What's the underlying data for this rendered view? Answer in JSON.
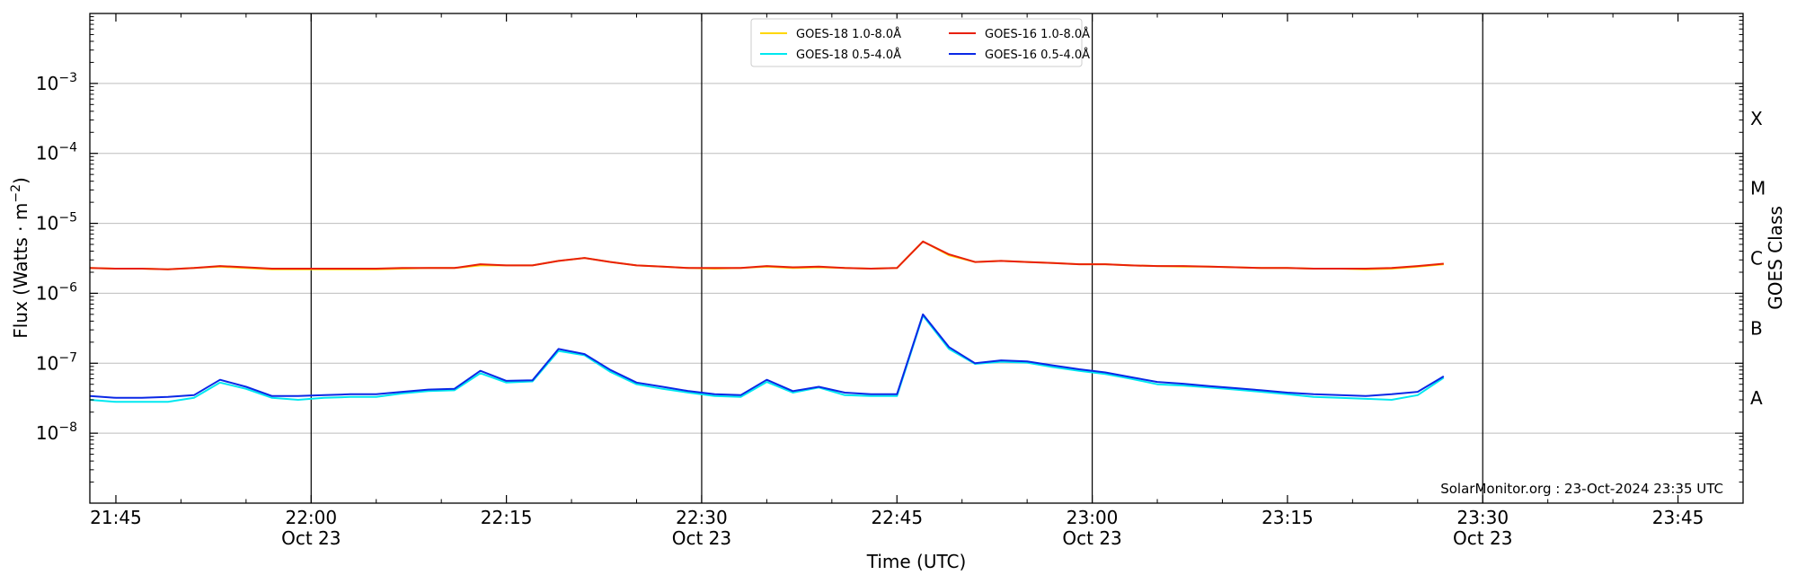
{
  "chart_data": {
    "type": "line",
    "xlabel": "Time (UTC)",
    "ylabel": "Flux (Watts · m",
    "ylabel_sup": "−2",
    "right_label": "GOES Class",
    "credit": "SolarMonitor.org : 23-Oct-2024 23:35 UTC",
    "x_range": [
      "21:43",
      "23:50"
    ],
    "ylim": [
      1e-09,
      0.01
    ],
    "y_scale": "log",
    "grid": "horizontal",
    "legend_position": "top-center",
    "y_ticks": [
      {
        "value": 1e-08,
        "base": "10",
        "exp": "−8"
      },
      {
        "value": 1e-07,
        "base": "10",
        "exp": "−7"
      },
      {
        "value": 1e-06,
        "base": "10",
        "exp": "−6"
      },
      {
        "value": 1e-05,
        "base": "10",
        "exp": "−5"
      },
      {
        "value": 0.0001,
        "base": "10",
        "exp": "−4"
      },
      {
        "value": 0.001,
        "base": "10",
        "exp": "−3"
      }
    ],
    "x_ticks": [
      {
        "time": "21:45",
        "label": "21:45",
        "sub": ""
      },
      {
        "time": "22:00",
        "label": "22:00",
        "sub": "Oct 23"
      },
      {
        "time": "22:15",
        "label": "22:15",
        "sub": ""
      },
      {
        "time": "22:30",
        "label": "22:30",
        "sub": "Oct 23"
      },
      {
        "time": "22:45",
        "label": "22:45",
        "sub": ""
      },
      {
        "time": "23:00",
        "label": "23:00",
        "sub": "Oct 23"
      },
      {
        "time": "23:15",
        "label": "23:15",
        "sub": ""
      },
      {
        "time": "23:30",
        "label": "23:30",
        "sub": "Oct 23"
      },
      {
        "time": "23:45",
        "label": "23:45",
        "sub": ""
      }
    ],
    "day_lines": [
      "22:00",
      "22:30",
      "23:00",
      "23:30"
    ],
    "classes": [
      {
        "label": "A",
        "value": 3.16e-08
      },
      {
        "label": "B",
        "value": 3.16e-07
      },
      {
        "label": "C",
        "value": 3.16e-06
      },
      {
        "label": "M",
        "value": 3.16e-05
      },
      {
        "label": "X",
        "value": 0.000316
      }
    ],
    "x": [
      "21:43",
      "21:45",
      "21:47",
      "21:49",
      "21:51",
      "21:53",
      "21:55",
      "21:57",
      "21:59",
      "22:01",
      "22:03",
      "22:05",
      "22:07",
      "22:09",
      "22:11",
      "22:13",
      "22:15",
      "22:17",
      "22:19",
      "22:21",
      "22:23",
      "22:25",
      "22:27",
      "22:29",
      "22:31",
      "22:33",
      "22:35",
      "22:37",
      "22:39",
      "22:41",
      "22:43",
      "22:45",
      "22:47",
      "22:49",
      "22:51",
      "22:53",
      "22:55",
      "22:57",
      "22:59",
      "23:01",
      "23:03",
      "23:05",
      "23:07",
      "23:09",
      "23:11",
      "23:13",
      "23:15",
      "23:17",
      "23:19",
      "23:21",
      "23:23",
      "23:25",
      "23:27"
    ],
    "series": [
      {
        "name": "GOES-18 1.0-8.0Å",
        "color": "#ffd700",
        "values": [
          2.3e-06,
          2.25e-06,
          2.25e-06,
          2.2e-06,
          2.3e-06,
          2.4e-06,
          2.3e-06,
          2.2e-06,
          2.2e-06,
          2.2e-06,
          2.2e-06,
          2.2e-06,
          2.25e-06,
          2.3e-06,
          2.3e-06,
          2.5e-06,
          2.5e-06,
          2.5e-06,
          2.9e-06,
          3.2e-06,
          2.8e-06,
          2.5e-06,
          2.4e-06,
          2.3e-06,
          2.25e-06,
          2.3e-06,
          2.4e-06,
          2.3e-06,
          2.35e-06,
          2.3e-06,
          2.25e-06,
          2.3e-06,
          5.5e-06,
          3.5e-06,
          2.8e-06,
          2.9e-06,
          2.8e-06,
          2.7e-06,
          2.6e-06,
          2.6e-06,
          2.5e-06,
          2.45e-06,
          2.4e-06,
          2.4e-06,
          2.35e-06,
          2.3e-06,
          2.3e-06,
          2.25e-06,
          2.25e-06,
          2.2e-06,
          2.25e-06,
          2.4e-06,
          2.6e-06
        ]
      },
      {
        "name": "GOES-18 0.5-4.0Å",
        "color": "#00e8f0",
        "values": [
          3e-08,
          2.8e-08,
          2.8e-08,
          2.8e-08,
          3.2e-08,
          5.3e-08,
          4.3e-08,
          3.2e-08,
          3e-08,
          3.2e-08,
          3.3e-08,
          3.3e-08,
          3.7e-08,
          4e-08,
          4.1e-08,
          7.2e-08,
          5.3e-08,
          5.5e-08,
          1.5e-07,
          1.3e-07,
          7.5e-08,
          5e-08,
          4.3e-08,
          3.8e-08,
          3.4e-08,
          3.3e-08,
          5.4e-08,
          3.8e-08,
          4.5e-08,
          3.5e-08,
          3.4e-08,
          3.4e-08,
          4.8e-07,
          1.6e-07,
          9.8e-08,
          1.05e-07,
          1.02e-07,
          8.8e-08,
          7.8e-08,
          7e-08,
          6e-08,
          5e-08,
          4.8e-08,
          4.5e-08,
          4.2e-08,
          3.9e-08,
          3.6e-08,
          3.3e-08,
          3.2e-08,
          3.1e-08,
          3e-08,
          3.5e-08,
          6.2e-08
        ]
      },
      {
        "name": "GOES-16 1.0-8.0Å",
        "color": "#e8200a",
        "values": [
          2.3e-06,
          2.25e-06,
          2.25e-06,
          2.2e-06,
          2.3e-06,
          2.45e-06,
          2.35e-06,
          2.25e-06,
          2.25e-06,
          2.25e-06,
          2.25e-06,
          2.25e-06,
          2.3e-06,
          2.3e-06,
          2.3e-06,
          2.6e-06,
          2.5e-06,
          2.5e-06,
          2.9e-06,
          3.2e-06,
          2.8e-06,
          2.5e-06,
          2.4e-06,
          2.3e-06,
          2.3e-06,
          2.3e-06,
          2.45e-06,
          2.35e-06,
          2.4e-06,
          2.3e-06,
          2.25e-06,
          2.3e-06,
          5.5e-06,
          3.6e-06,
          2.8e-06,
          2.9e-06,
          2.8e-06,
          2.7e-06,
          2.6e-06,
          2.6e-06,
          2.5e-06,
          2.45e-06,
          2.45e-06,
          2.4e-06,
          2.35e-06,
          2.3e-06,
          2.3e-06,
          2.25e-06,
          2.25e-06,
          2.25e-06,
          2.3e-06,
          2.45e-06,
          2.65e-06
        ]
      },
      {
        "name": "GOES-16 0.5-4.0Å",
        "color": "#0a28e6",
        "values": [
          3.4e-08,
          3.2e-08,
          3.2e-08,
          3.3e-08,
          3.5e-08,
          5.8e-08,
          4.6e-08,
          3.4e-08,
          3.4e-08,
          3.5e-08,
          3.6e-08,
          3.6e-08,
          3.9e-08,
          4.2e-08,
          4.3e-08,
          7.8e-08,
          5.6e-08,
          5.7e-08,
          1.6e-07,
          1.35e-07,
          8e-08,
          5.3e-08,
          4.6e-08,
          4e-08,
          3.6e-08,
          3.5e-08,
          5.8e-08,
          4e-08,
          4.6e-08,
          3.8e-08,
          3.6e-08,
          3.6e-08,
          5e-07,
          1.7e-07,
          1e-07,
          1.1e-07,
          1.06e-07,
          9.3e-08,
          8.2e-08,
          7.4e-08,
          6.3e-08,
          5.4e-08,
          5.1e-08,
          4.7e-08,
          4.4e-08,
          4.1e-08,
          3.8e-08,
          3.6e-08,
          3.5e-08,
          3.4e-08,
          3.6e-08,
          3.9e-08,
          6.5e-08
        ]
      }
    ]
  }
}
